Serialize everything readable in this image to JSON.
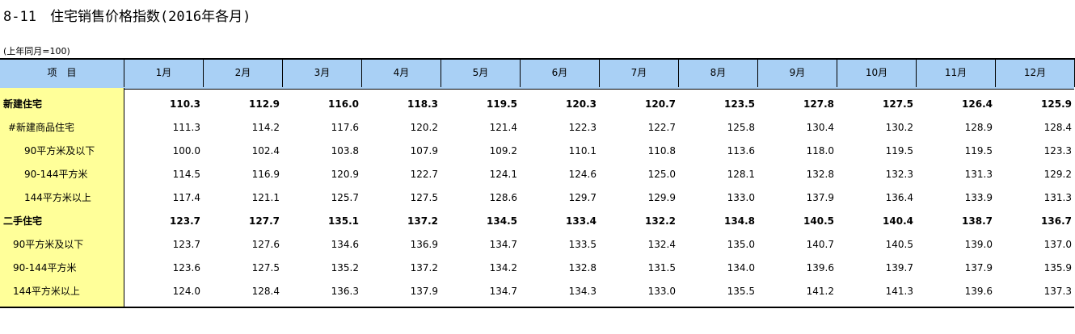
{
  "title": "8-11　住宅销售价格指数(2016年各月)",
  "note": "(上年同月=100)",
  "table": {
    "header": [
      "项　目",
      "1月",
      "2月",
      "3月",
      "4月",
      "5月",
      "6月",
      "7月",
      "8月",
      "9月",
      "10月",
      "11月",
      "12月"
    ],
    "rows": [
      {
        "label": "新建住宅",
        "values": [
          "110.3",
          "112.9",
          "116.0",
          "118.3",
          "119.5",
          "120.3",
          "120.7",
          "123.5",
          "127.8",
          "127.5",
          "126.4",
          "125.9"
        ]
      },
      {
        "label": "#新建商品住宅",
        "values": [
          "111.3",
          "114.2",
          "117.6",
          "120.2",
          "121.4",
          "122.3",
          "122.7",
          "125.8",
          "130.4",
          "130.2",
          "128.9",
          "128.4"
        ]
      },
      {
        "label": "90平方米及以下",
        "values": [
          "100.0",
          "102.4",
          "103.8",
          "107.9",
          "109.2",
          "110.1",
          "110.8",
          "113.6",
          "118.0",
          "119.5",
          "119.5",
          "123.3"
        ]
      },
      {
        "label": "90-144平方米",
        "values": [
          "114.5",
          "116.9",
          "120.9",
          "122.7",
          "124.1",
          "124.6",
          "125.0",
          "128.1",
          "132.8",
          "132.3",
          "131.3",
          "129.2"
        ]
      },
      {
        "label": "144平方米以上",
        "values": [
          "117.4",
          "121.1",
          "125.7",
          "127.5",
          "128.6",
          "129.7",
          "129.9",
          "133.0",
          "137.9",
          "136.4",
          "133.9",
          "131.3"
        ]
      },
      {
        "label": "二手住宅",
        "values": [
          "123.7",
          "127.7",
          "135.1",
          "137.2",
          "134.5",
          "133.4",
          "132.2",
          "134.8",
          "140.5",
          "140.4",
          "138.7",
          "136.7"
        ]
      },
      {
        "label": "90平方米及以下",
        "values": [
          "123.7",
          "127.6",
          "134.6",
          "136.9",
          "134.7",
          "133.5",
          "132.4",
          "135.0",
          "140.7",
          "140.5",
          "139.0",
          "137.0"
        ]
      },
      {
        "label": "90-144平方米",
        "values": [
          "123.6",
          "127.5",
          "135.2",
          "137.2",
          "134.2",
          "132.8",
          "131.5",
          "134.0",
          "139.6",
          "139.7",
          "137.9",
          "135.9"
        ]
      },
      {
        "label": "144平方米以上",
        "values": [
          "124.0",
          "128.4",
          "136.3",
          "137.9",
          "134.7",
          "134.3",
          "133.0",
          "135.5",
          "141.2",
          "141.3",
          "139.6",
          "137.3"
        ]
      }
    ]
  }
}
